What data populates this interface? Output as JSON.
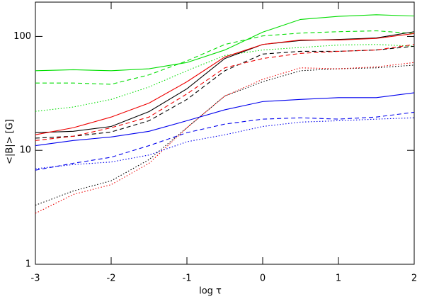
{
  "chart_data": {
    "type": "line",
    "xlabel": "log τ",
    "ylabel": "<|B|> [G]",
    "x": [
      -3,
      -2.5,
      -2,
      -1.5,
      -1,
      -0.5,
      0,
      0.5,
      1,
      1.5,
      2
    ],
    "xlim": [
      -3,
      2
    ],
    "xticks": [
      -3,
      -2,
      -1,
      0,
      1,
      2
    ],
    "ylim": [
      1,
      200
    ],
    "yticks": [
      1,
      10,
      100
    ],
    "ylog": true,
    "series": [
      {
        "color": "#00dd00",
        "dash": "solid",
        "values": [
          50,
          51,
          50,
          52,
          59,
          76,
          109,
          141,
          150,
          155,
          151
        ]
      },
      {
        "color": "#00dd00",
        "dash": "dashed",
        "values": [
          39,
          39,
          38,
          46,
          61,
          85,
          101,
          107,
          110,
          112,
          106
        ]
      },
      {
        "color": "#00dd00",
        "dash": "dotted",
        "values": [
          22,
          24,
          28,
          36,
          50,
          68,
          76,
          80,
          84,
          85,
          82
        ]
      },
      {
        "color": "#000000",
        "dash": "solid",
        "values": [
          14.3,
          14.7,
          16.2,
          21.9,
          34.7,
          64,
          85,
          92,
          94,
          97,
          110
        ]
      },
      {
        "color": "#ee0000",
        "dash": "solid",
        "values": [
          13.7,
          15.8,
          19.6,
          26,
          40,
          66,
          85,
          93,
          93,
          96,
          106
        ]
      },
      {
        "color": "#000000",
        "dash": "dashed",
        "values": [
          12.8,
          13.3,
          14.5,
          18.2,
          28,
          50,
          70,
          74,
          74,
          76,
          82
        ]
      },
      {
        "color": "#ee0000",
        "dash": "dashed",
        "values": [
          12.2,
          13.3,
          15.8,
          19.6,
          31.3,
          53,
          64,
          71,
          74,
          76,
          85
        ]
      },
      {
        "color": "#000000",
        "dash": "dotted",
        "values": [
          3.3,
          4.4,
          5.4,
          8.3,
          15.8,
          30,
          40,
          50,
          52,
          53,
          56
        ]
      },
      {
        "color": "#ee0000",
        "dash": "dotted",
        "values": [
          2.8,
          4.1,
          5.0,
          7.7,
          15.8,
          30,
          42,
          53,
          52,
          54,
          59
        ]
      },
      {
        "color": "#0000ee",
        "dash": "solid",
        "values": [
          11.0,
          12.2,
          13.1,
          14.7,
          18.2,
          22.7,
          26.8,
          28,
          29,
          29,
          32
        ]
      },
      {
        "color": "#0000ee",
        "dash": "dashed",
        "values": [
          6.7,
          7.7,
          8.7,
          11,
          14.3,
          17,
          18.8,
          19.3,
          18.8,
          19.6,
          21.6
        ]
      },
      {
        "color": "#0000ee",
        "dash": "dotted",
        "values": [
          6.9,
          7.5,
          7.9,
          9.1,
          11.9,
          13.7,
          16.2,
          17.7,
          18.2,
          18.8,
          19.3
        ]
      }
    ]
  }
}
